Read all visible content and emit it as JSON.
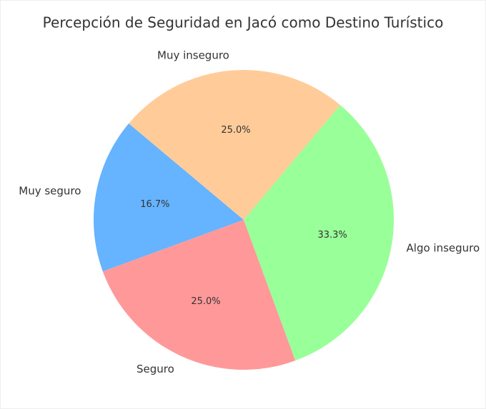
{
  "chart_data": {
    "type": "pie",
    "title": "Percepción de Seguridad en Jacó como Destino Turístico",
    "categories": [
      "Muy seguro",
      "Seguro",
      "Algo inseguro",
      "Muy inseguro"
    ],
    "values": [
      16.7,
      25,
      33.3,
      25
    ],
    "value_labels": [
      "16.7%",
      "25.0%",
      "33.3%",
      "25.0%"
    ],
    "colors": [
      "#66b3ff",
      "#ff9999",
      "#99ff99",
      "#ffcc99"
    ]
  }
}
